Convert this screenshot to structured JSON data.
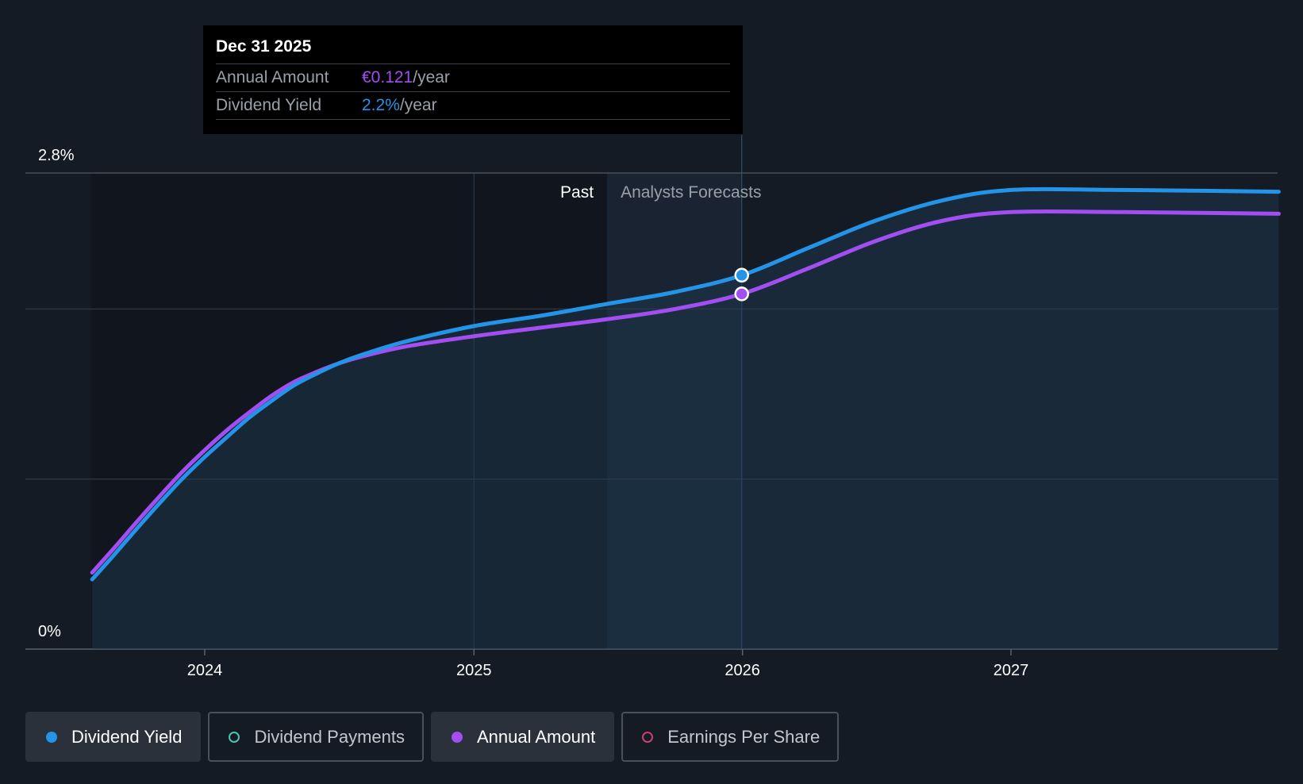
{
  "chart_data": {
    "type": "line",
    "x_range": [
      "2023-07-31",
      "2027-12-31"
    ],
    "x_ticks": [
      "2024",
      "2025",
      "2026",
      "2027"
    ],
    "y_ticks": [
      "2.8%",
      "0%"
    ],
    "ylim": [
      0,
      2.8
    ],
    "grid": true,
    "regions": {
      "past_label": "Past",
      "forecast_label": "Analysts Forecasts"
    },
    "series": [
      {
        "name": "Dividend Yield",
        "color": "#2394e8",
        "points": [
          [
            "2023-08-01",
            0.41
          ],
          [
            "2023-09-01",
            0.56
          ],
          [
            "2023-10-01",
            0.71
          ],
          [
            "2023-11-01",
            0.86
          ],
          [
            "2023-12-01",
            1.0
          ],
          [
            "2024-01-01",
            1.13
          ],
          [
            "2024-02-01",
            1.25
          ],
          [
            "2024-03-01",
            1.36
          ],
          [
            "2024-04-01",
            1.46
          ],
          [
            "2024-05-01",
            1.55
          ],
          [
            "2024-06-01",
            1.62
          ],
          [
            "2024-07-01",
            1.68
          ],
          [
            "2024-08-01",
            1.73
          ],
          [
            "2024-10-01",
            1.81
          ],
          [
            "2025-01-01",
            1.9
          ],
          [
            "2025-04-01",
            1.96
          ],
          [
            "2025-07-01",
            2.03
          ],
          [
            "2025-10-01",
            2.1
          ],
          [
            "2026-01-01",
            2.2
          ],
          [
            "2026-04-01",
            2.36
          ],
          [
            "2026-07-01",
            2.52
          ],
          [
            "2026-10-01",
            2.64
          ],
          [
            "2027-01-01",
            2.7
          ],
          [
            "2027-06-01",
            2.7
          ],
          [
            "2027-12-31",
            2.69
          ]
        ]
      },
      {
        "name": "Annual Amount",
        "color": "#a24ef0",
        "points": [
          [
            "2023-08-01",
            0.45
          ],
          [
            "2023-09-01",
            0.6
          ],
          [
            "2023-10-01",
            0.75
          ],
          [
            "2023-11-01",
            0.9
          ],
          [
            "2023-12-01",
            1.04
          ],
          [
            "2024-01-01",
            1.17
          ],
          [
            "2024-02-01",
            1.29
          ],
          [
            "2024-03-01",
            1.39
          ],
          [
            "2024-04-01",
            1.49
          ],
          [
            "2024-05-01",
            1.57
          ],
          [
            "2024-06-01",
            1.63
          ],
          [
            "2024-07-01",
            1.68
          ],
          [
            "2024-08-01",
            1.72
          ],
          [
            "2024-10-01",
            1.78
          ],
          [
            "2025-01-01",
            1.84
          ],
          [
            "2025-04-01",
            1.89
          ],
          [
            "2025-07-01",
            1.94
          ],
          [
            "2025-10-01",
            2.0
          ],
          [
            "2026-01-01",
            2.09
          ],
          [
            "2026-04-01",
            2.24
          ],
          [
            "2026-07-01",
            2.4
          ],
          [
            "2026-10-01",
            2.52
          ],
          [
            "2027-01-01",
            2.57
          ],
          [
            "2027-06-01",
            2.57
          ],
          [
            "2027-12-31",
            2.56
          ]
        ]
      }
    ],
    "highlight_date": "2025-12-31"
  },
  "tooltip": {
    "date": "Dec 31 2025",
    "rows": [
      {
        "label": "Annual Amount",
        "value": "€0.121",
        "unit": "/year",
        "color": "#a24ef0"
      },
      {
        "label": "Dividend Yield",
        "value": "2.2%",
        "unit": "/year",
        "color": "#2394e8"
      }
    ]
  },
  "legend": [
    {
      "label": "Dividend Yield",
      "active": true,
      "color": "#2394e8",
      "marker": "filled"
    },
    {
      "label": "Dividend Payments",
      "active": false,
      "color": "#4ec3b0",
      "marker": "hollow"
    },
    {
      "label": "Annual Amount",
      "active": true,
      "color": "#a24ef0",
      "marker": "filled"
    },
    {
      "label": "Earnings Per Share",
      "active": false,
      "color": "#c8406f",
      "marker": "hollow"
    }
  ]
}
